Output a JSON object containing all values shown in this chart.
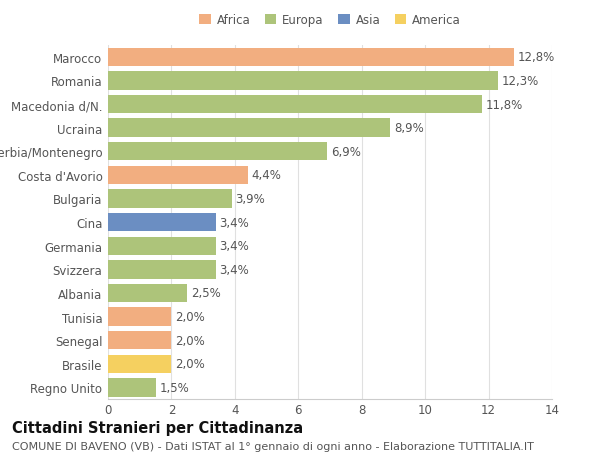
{
  "countries": [
    "Marocco",
    "Romania",
    "Macedonia d/N.",
    "Ucraina",
    "Serbia/Montenegro",
    "Costa d'Avorio",
    "Bulgaria",
    "Cina",
    "Germania",
    "Svizzera",
    "Albania",
    "Tunisia",
    "Senegal",
    "Brasile",
    "Regno Unito"
  ],
  "values": [
    12.8,
    12.3,
    11.8,
    8.9,
    6.9,
    4.4,
    3.9,
    3.4,
    3.4,
    3.4,
    2.5,
    2.0,
    2.0,
    2.0,
    1.5
  ],
  "labels": [
    "12,8%",
    "12,3%",
    "11,8%",
    "8,9%",
    "6,9%",
    "4,4%",
    "3,9%",
    "3,4%",
    "3,4%",
    "3,4%",
    "2,5%",
    "2,0%",
    "2,0%",
    "2,0%",
    "1,5%"
  ],
  "colors": [
    "#f2ae80",
    "#adc47a",
    "#adc47a",
    "#adc47a",
    "#adc47a",
    "#f2ae80",
    "#adc47a",
    "#6b8ec2",
    "#adc47a",
    "#adc47a",
    "#adc47a",
    "#f2ae80",
    "#f2ae80",
    "#f5d060",
    "#adc47a"
  ],
  "legend_labels": [
    "Africa",
    "Europa",
    "Asia",
    "America"
  ],
  "legend_colors": [
    "#f2ae80",
    "#adc47a",
    "#6b8ec2",
    "#f5d060"
  ],
  "title": "Cittadini Stranieri per Cittadinanza",
  "subtitle": "COMUNE DI BAVENO (VB) - Dati ISTAT al 1° gennaio di ogni anno - Elaborazione TUTTITALIA.IT",
  "xlim": [
    0,
    14
  ],
  "xticks": [
    0,
    2,
    4,
    6,
    8,
    10,
    12,
    14
  ],
  "background_color": "#ffffff",
  "grid_color": "#e0e0e0",
  "bar_height": 0.78,
  "label_fontsize": 8.5,
  "tick_fontsize": 8.5,
  "title_fontsize": 10.5,
  "subtitle_fontsize": 8.0
}
